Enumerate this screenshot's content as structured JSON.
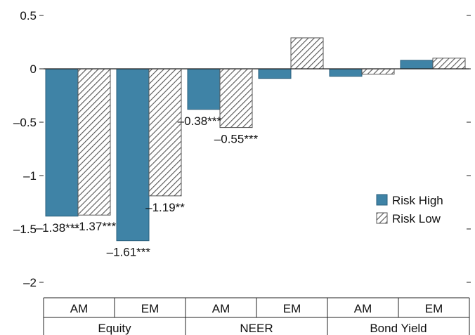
{
  "colors": {
    "risk_high": "#3f83a6",
    "risk_low_stroke": "#555555",
    "axis": "#222222"
  },
  "chart_data": {
    "type": "bar",
    "title": "",
    "xlabel": "",
    "ylabel": "",
    "ylim": [
      -2,
      0.5
    ],
    "yticks": [
      {
        "value": 0.5,
        "label": "0.5"
      },
      {
        "value": 0,
        "label": "0"
      },
      {
        "value": -0.5,
        "label": "–0.5"
      },
      {
        "value": -1,
        "label": "–1"
      },
      {
        "value": -1.5,
        "label": "–1.5"
      },
      {
        "value": -2,
        "label": "–2"
      }
    ],
    "groups": [
      "Equity",
      "NEER",
      "Bond Yield"
    ],
    "categories": [
      "AM",
      "EM",
      "AM",
      "EM",
      "AM",
      "EM"
    ],
    "legend_position": "right",
    "series": [
      {
        "name": "Risk High",
        "pattern": "solid",
        "values": [
          -1.38,
          -1.61,
          -0.38,
          -0.09,
          -0.07,
          0.08
        ],
        "labels": [
          "–1.38***",
          "–1.61***",
          "–0.38***",
          "",
          "",
          ""
        ]
      },
      {
        "name": "Risk Low",
        "pattern": "hatched",
        "values": [
          -1.37,
          -1.19,
          -0.55,
          0.29,
          -0.05,
          0.1
        ],
        "labels": [
          "–1.37***",
          "–1.19**",
          "–0.55***",
          "",
          "",
          ""
        ]
      }
    ]
  }
}
